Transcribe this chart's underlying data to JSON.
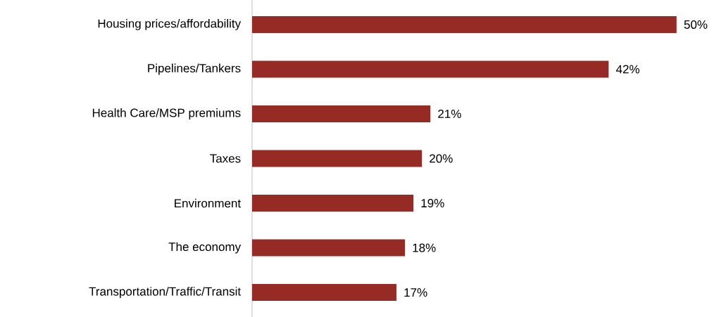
{
  "chart_data": {
    "type": "bar",
    "orientation": "horizontal",
    "categories": [
      "Housing prices/affordability",
      "Pipelines/Tankers",
      "Health Care/MSP premiums",
      "Taxes",
      "Environment",
      "The economy",
      "Transportation/Traffic/Transit"
    ],
    "values": [
      50,
      42,
      21,
      20,
      19,
      18,
      17
    ],
    "value_labels": [
      "50%",
      "42%",
      "21%",
      "20%",
      "19%",
      "18%",
      "17%"
    ],
    "color": "#962a24"
  }
}
